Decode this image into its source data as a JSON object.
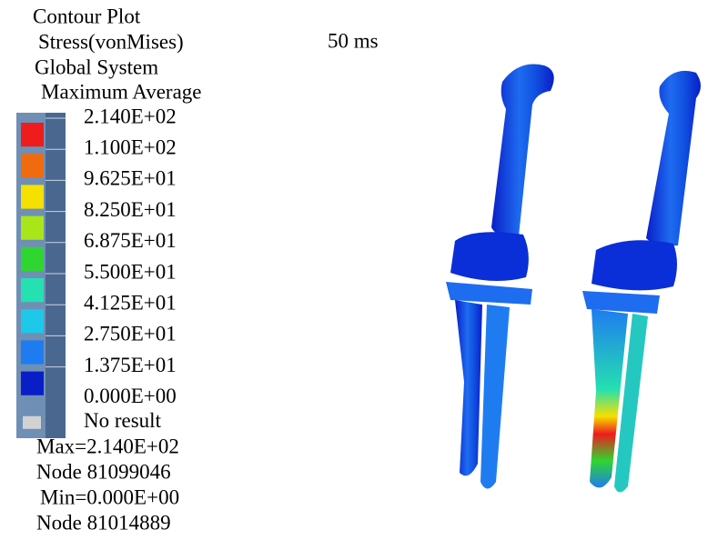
{
  "header": {
    "lines": [
      "Contour Plot",
      "Stress(vonMises)",
      "Global System",
      "Maximum Average"
    ]
  },
  "time": "50 ms",
  "legend": {
    "levels": [
      "2.140E+02",
      "1.100E+02",
      "9.625E+01",
      "8.250E+01",
      "6.875E+01",
      "5.500E+01",
      "4.125E+01",
      "2.750E+01",
      "1.375E+01",
      "0.000E+00"
    ],
    "band_colors": [
      "#ee1c1c",
      "#f06a10",
      "#f5e000",
      "#a8e61a",
      "#2fd62f",
      "#25e0b0",
      "#1ec8e8",
      "#1e7cf0",
      "#0a1ec8"
    ],
    "no_result": {
      "label": "No result",
      "color": "#d2d2d2"
    }
  },
  "summary": {
    "max": "Max=2.140E+02",
    "max_node": "Node 81099046",
    "min": "Min=0.000E+00",
    "min_node": "Node 81014889"
  }
}
